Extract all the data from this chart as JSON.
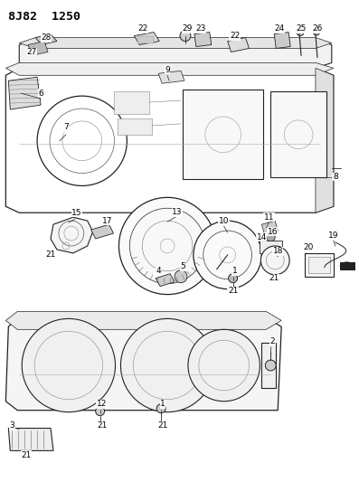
{
  "title": "8J82  1250",
  "background_color": "#ffffff",
  "fig_width": 3.97,
  "fig_height": 5.33,
  "dpi": 100
}
